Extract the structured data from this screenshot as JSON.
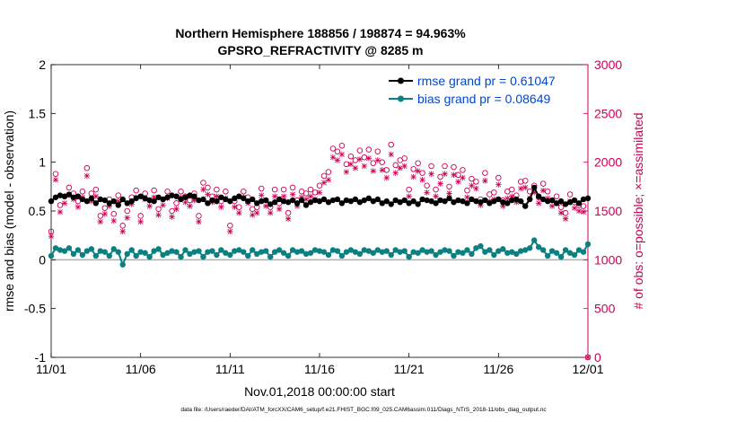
{
  "chart_data": {
    "type": "line",
    "title": "Northern Hemisphere 188856 / 198874 = 94.963%",
    "subtitle": "GPSRO_REFRACTIVITY @ 8285 m",
    "xlabel": "Nov.01,2018 00:00:00 start",
    "ylabel_left": "rmse and bias (model - observation)",
    "ylabel_right": "# of obs: o=possible; ×=assimilated",
    "footer": "data file: /Users/raeder/DAI/ATM_forcXX/CAM6_setup/f.e21.FHIST_BGC.f09_025.CAM6assim.011/Diags_NTrS_2018-11/obs_diag_output.nc",
    "xlim": [
      0,
      30
    ],
    "ylim_left": [
      -1,
      2
    ],
    "ylim_right": [
      0,
      3000
    ],
    "x_ticks": [
      0,
      5,
      10,
      15,
      20,
      25,
      30
    ],
    "x_tick_labels": [
      "11/01",
      "11/06",
      "11/11",
      "11/16",
      "11/21",
      "11/26",
      "12/01"
    ],
    "y_ticks_left": [
      -1,
      -0.5,
      0,
      0.5,
      1,
      1.5,
      2
    ],
    "y_tick_labels_left": [
      "-1",
      "-0.5",
      "0",
      "0.5",
      "1",
      "1.5",
      "2"
    ],
    "y_ticks_right": [
      0,
      500,
      1000,
      1500,
      2000,
      2500,
      3000
    ],
    "y_tick_labels_right": [
      "0",
      "500",
      "1000",
      "1500",
      "2000",
      "2500",
      "3000"
    ],
    "legend_position": "top-right",
    "legend": [
      "rmse grand pr = 0.61047",
      "bias grand pr = 0.08649"
    ],
    "colors": {
      "rmse": "#000000",
      "bias": "#0a8080",
      "obs": "#cc0055",
      "zero_line": "#b0b0b0"
    },
    "series": [
      {
        "name": "rmse",
        "x": [
          0.0,
          0.25,
          0.5,
          0.75,
          1.0,
          1.25,
          1.5,
          1.75,
          2.0,
          2.25,
          2.5,
          2.75,
          3.0,
          3.25,
          3.5,
          3.75,
          4.0,
          4.25,
          4.5,
          4.75,
          5.0,
          5.25,
          5.5,
          5.75,
          6.0,
          6.25,
          6.5,
          6.75,
          7.0,
          7.25,
          7.5,
          7.75,
          8.0,
          8.25,
          8.5,
          8.75,
          9.0,
          9.25,
          9.5,
          9.75,
          10.0,
          10.25,
          10.5,
          10.75,
          11.0,
          11.25,
          11.5,
          11.75,
          12.0,
          12.25,
          12.5,
          12.75,
          13.0,
          13.25,
          13.5,
          13.75,
          14.0,
          14.25,
          14.5,
          14.75,
          15.0,
          15.25,
          15.5,
          15.75,
          16.0,
          16.25,
          16.5,
          16.75,
          17.0,
          17.25,
          17.5,
          17.75,
          18.0,
          18.25,
          18.5,
          18.75,
          19.0,
          19.25,
          19.5,
          19.75,
          20.0,
          20.25,
          20.5,
          20.75,
          21.0,
          21.25,
          21.5,
          21.75,
          22.0,
          22.25,
          22.5,
          22.75,
          23.0,
          23.25,
          23.5,
          23.75,
          24.0,
          24.25,
          24.5,
          24.75,
          25.0,
          25.25,
          25.5,
          25.75,
          26.0,
          26.25,
          26.5,
          26.75,
          27.0,
          27.25,
          27.5,
          27.75,
          28.0,
          28.25,
          28.5,
          28.75,
          29.0,
          29.25,
          29.5,
          29.75,
          30.0
        ],
        "values": [
          0.6,
          0.64,
          0.66,
          0.65,
          0.67,
          0.64,
          0.65,
          0.62,
          0.6,
          0.63,
          0.58,
          0.62,
          0.61,
          0.58,
          0.6,
          0.56,
          0.62,
          0.58,
          0.6,
          0.63,
          0.65,
          0.63,
          0.61,
          0.6,
          0.64,
          0.62,
          0.64,
          0.66,
          0.65,
          0.62,
          0.64,
          0.66,
          0.65,
          0.61,
          0.62,
          0.58,
          0.61,
          0.6,
          0.64,
          0.62,
          0.6,
          0.63,
          0.65,
          0.63,
          0.6,
          0.62,
          0.58,
          0.6,
          0.61,
          0.57,
          0.59,
          0.62,
          0.6,
          0.59,
          0.61,
          0.58,
          0.61,
          0.56,
          0.59,
          0.61,
          0.6,
          0.62,
          0.59,
          0.61,
          0.62,
          0.58,
          0.61,
          0.6,
          0.62,
          0.59,
          0.61,
          0.63,
          0.6,
          0.62,
          0.58,
          0.6,
          0.57,
          0.61,
          0.59,
          0.61,
          0.58,
          0.6,
          0.57,
          0.62,
          0.61,
          0.6,
          0.58,
          0.61,
          0.6,
          0.63,
          0.59,
          0.61,
          0.6,
          0.58,
          0.62,
          0.6,
          0.59,
          0.61,
          0.58,
          0.6,
          0.62,
          0.59,
          0.58,
          0.61,
          0.62,
          0.6,
          0.55,
          0.62,
          0.74,
          0.65,
          0.62,
          0.6,
          0.61,
          0.58,
          0.6,
          0.57,
          0.59,
          0.61,
          0.58,
          0.62,
          0.63
        ]
      },
      {
        "name": "bias",
        "x": [
          0.0,
          0.25,
          0.5,
          0.75,
          1.0,
          1.25,
          1.5,
          1.75,
          2.0,
          2.25,
          2.5,
          2.75,
          3.0,
          3.25,
          3.5,
          3.75,
          4.0,
          4.25,
          4.5,
          4.75,
          5.0,
          5.25,
          5.5,
          5.75,
          6.0,
          6.25,
          6.5,
          6.75,
          7.0,
          7.25,
          7.5,
          7.75,
          8.0,
          8.25,
          8.5,
          8.75,
          9.0,
          9.25,
          9.5,
          9.75,
          10.0,
          10.25,
          10.5,
          10.75,
          11.0,
          11.25,
          11.5,
          11.75,
          12.0,
          12.25,
          12.5,
          12.75,
          13.0,
          13.25,
          13.5,
          13.75,
          14.0,
          14.25,
          14.5,
          14.75,
          15.0,
          15.25,
          15.5,
          15.75,
          16.0,
          16.25,
          16.5,
          16.75,
          17.0,
          17.25,
          17.5,
          17.75,
          18.0,
          18.25,
          18.5,
          18.75,
          19.0,
          19.25,
          19.5,
          19.75,
          20.0,
          20.25,
          20.5,
          20.75,
          21.0,
          21.25,
          21.5,
          21.75,
          22.0,
          22.25,
          22.5,
          22.75,
          23.0,
          23.25,
          23.5,
          23.75,
          24.0,
          24.25,
          24.5,
          24.75,
          25.0,
          25.25,
          25.5,
          25.75,
          26.0,
          26.25,
          26.5,
          26.75,
          27.0,
          27.25,
          27.5,
          27.75,
          28.0,
          28.25,
          28.5,
          28.75,
          29.0,
          29.25,
          29.5,
          29.75,
          30.0
        ],
        "values": [
          0.04,
          0.12,
          0.1,
          0.09,
          0.12,
          0.06,
          0.1,
          0.05,
          0.09,
          0.11,
          0.04,
          0.09,
          0.08,
          0.04,
          0.11,
          0.08,
          -0.05,
          0.06,
          0.1,
          0.04,
          0.08,
          0.07,
          0.03,
          0.09,
          0.11,
          0.05,
          0.07,
          0.09,
          0.08,
          0.03,
          0.1,
          0.06,
          0.08,
          0.09,
          0.03,
          0.08,
          0.09,
          0.05,
          0.1,
          0.07,
          0.05,
          0.09,
          0.1,
          0.08,
          0.04,
          0.1,
          0.06,
          0.08,
          0.09,
          0.03,
          0.08,
          0.1,
          0.07,
          0.04,
          0.1,
          0.08,
          0.09,
          0.06,
          0.07,
          0.1,
          0.09,
          0.08,
          0.05,
          0.1,
          0.09,
          0.04,
          0.08,
          0.1,
          0.08,
          0.06,
          0.1,
          0.09,
          0.07,
          0.1,
          0.08,
          0.09,
          0.05,
          0.1,
          0.08,
          0.09,
          0.03,
          0.08,
          0.07,
          0.1,
          0.08,
          0.09,
          0.05,
          0.08,
          0.1,
          0.09,
          0.04,
          0.08,
          0.07,
          0.1,
          0.06,
          0.12,
          0.14,
          0.08,
          0.1,
          0.05,
          0.09,
          0.11,
          0.07,
          0.08,
          0.06,
          0.09,
          0.1,
          0.12,
          0.2,
          0.13,
          0.1,
          0.04,
          0.09,
          0.07,
          0.03,
          0.1,
          0.07,
          0.05,
          0.1,
          0.08,
          0.16
        ]
      },
      {
        "name": "obs possible (o)",
        "x": [
          0.0,
          0.25,
          0.5,
          0.75,
          1.0,
          1.25,
          1.5,
          1.75,
          2.0,
          2.25,
          2.5,
          2.75,
          3.0,
          3.25,
          3.5,
          3.75,
          4.0,
          4.25,
          4.5,
          4.75,
          5.0,
          5.25,
          5.5,
          5.75,
          6.0,
          6.25,
          6.5,
          6.75,
          7.0,
          7.25,
          7.5,
          7.75,
          8.0,
          8.25,
          8.5,
          8.75,
          9.0,
          9.25,
          9.5,
          9.75,
          10.0,
          10.25,
          10.5,
          10.75,
          11.0,
          11.25,
          11.5,
          11.75,
          12.0,
          12.25,
          12.5,
          12.75,
          13.0,
          13.25,
          13.5,
          13.75,
          14.0,
          14.25,
          14.5,
          14.75,
          15.0,
          15.25,
          15.5,
          15.75,
          16.0,
          16.25,
          16.5,
          16.75,
          17.0,
          17.25,
          17.5,
          17.75,
          18.0,
          18.25,
          18.5,
          18.75,
          19.0,
          19.25,
          19.5,
          19.75,
          20.0,
          20.25,
          20.5,
          20.75,
          21.0,
          21.25,
          21.5,
          21.75,
          22.0,
          22.25,
          22.5,
          22.75,
          23.0,
          23.25,
          23.5,
          23.75,
          24.0,
          24.25,
          24.5,
          24.75,
          25.0,
          25.25,
          25.5,
          25.75,
          26.0,
          26.25,
          26.5,
          26.75,
          27.0,
          27.25,
          27.5,
          27.75,
          28.0,
          28.25,
          28.5,
          28.75,
          29.0,
          29.25,
          29.5,
          29.75,
          30.0
        ],
        "values": [
          1290,
          1880,
          1560,
          1650,
          1740,
          1680,
          1600,
          1700,
          1940,
          1680,
          1720,
          1450,
          1530,
          1620,
          1470,
          1660,
          1350,
          1500,
          1640,
          1710,
          1450,
          1680,
          1610,
          1710,
          1520,
          1620,
          1700,
          1500,
          1580,
          1700,
          1650,
          1610,
          1680,
          1450,
          1790,
          1740,
          1650,
          1720,
          1600,
          1700,
          1350,
          1600,
          1540,
          1700,
          1640,
          1520,
          1540,
          1730,
          1610,
          1540,
          1720,
          1580,
          1720,
          1480,
          1740,
          1610,
          1700,
          1680,
          1720,
          1690,
          1760,
          1860,
          1900,
          2140,
          2110,
          2170,
          1980,
          2060,
          2020,
          2120,
          2050,
          2130,
          1990,
          2110,
          2000,
          1920,
          2180,
          1970,
          2020,
          2040,
          1720,
          1930,
          1990,
          1890,
          1760,
          1960,
          1720,
          1850,
          1960,
          1750,
          1950,
          1870,
          1920,
          1710,
          1830,
          1800,
          1620,
          1890,
          1670,
          1690,
          1840,
          1610,
          1700,
          1720,
          1660,
          1800,
          1810,
          1700,
          1760,
          1640,
          1780,
          1700,
          1610,
          1650,
          1540,
          1480,
          1670,
          1590,
          1560,
          1550,
          0
        ]
      },
      {
        "name": "obs assimilated (x)",
        "x": [
          0.0,
          0.25,
          0.5,
          0.75,
          1.0,
          1.25,
          1.5,
          1.75,
          2.0,
          2.25,
          2.5,
          2.75,
          3.0,
          3.25,
          3.5,
          3.75,
          4.0,
          4.25,
          4.5,
          4.75,
          5.0,
          5.25,
          5.5,
          5.75,
          6.0,
          6.25,
          6.5,
          6.75,
          7.0,
          7.25,
          7.5,
          7.75,
          8.0,
          8.25,
          8.5,
          8.75,
          9.0,
          9.25,
          9.5,
          9.75,
          10.0,
          10.25,
          10.5,
          10.75,
          11.0,
          11.25,
          11.5,
          11.75,
          12.0,
          12.25,
          12.5,
          12.75,
          13.0,
          13.25,
          13.5,
          13.75,
          14.0,
          14.25,
          14.5,
          14.75,
          15.0,
          15.25,
          15.5,
          15.75,
          16.0,
          16.25,
          16.5,
          16.75,
          17.0,
          17.25,
          17.5,
          17.75,
          18.0,
          18.25,
          18.5,
          18.75,
          19.0,
          19.25,
          19.5,
          19.75,
          20.0,
          20.25,
          20.5,
          20.75,
          21.0,
          21.25,
          21.5,
          21.75,
          22.0,
          22.25,
          22.5,
          22.75,
          23.0,
          23.25,
          23.5,
          23.75,
          24.0,
          24.25,
          24.5,
          24.75,
          25.0,
          25.25,
          25.5,
          25.75,
          26.0,
          26.25,
          26.5,
          26.75,
          27.0,
          27.25,
          27.5,
          27.75,
          28.0,
          28.25,
          28.5,
          28.75,
          29.0,
          29.25,
          29.5,
          29.75,
          30.0
        ],
        "values": [
          1240,
          1820,
          1490,
          1580,
          1660,
          1620,
          1540,
          1640,
          1860,
          1600,
          1650,
          1390,
          1470,
          1550,
          1400,
          1600,
          1290,
          1430,
          1570,
          1640,
          1390,
          1620,
          1550,
          1640,
          1460,
          1560,
          1630,
          1440,
          1520,
          1640,
          1590,
          1550,
          1610,
          1390,
          1720,
          1670,
          1590,
          1650,
          1540,
          1630,
          1290,
          1540,
          1480,
          1640,
          1580,
          1460,
          1480,
          1660,
          1550,
          1480,
          1650,
          1520,
          1650,
          1420,
          1670,
          1550,
          1640,
          1620,
          1650,
          1620,
          1690,
          1790,
          1820,
          2050,
          2020,
          2080,
          1900,
          1980,
          1940,
          2030,
          1960,
          2040,
          1910,
          2020,
          1920,
          1840,
          2080,
          1890,
          1940,
          1960,
          1650,
          1850,
          1910,
          1820,
          1690,
          1880,
          1650,
          1780,
          1880,
          1680,
          1870,
          1800,
          1840,
          1640,
          1760,
          1730,
          1560,
          1810,
          1600,
          1620,
          1770,
          1550,
          1630,
          1650,
          1590,
          1730,
          1740,
          1630,
          1690,
          1580,
          1710,
          1630,
          1550,
          1580,
          1480,
          1420,
          1600,
          1530,
          1500,
          1490,
          0
        ]
      }
    ]
  }
}
